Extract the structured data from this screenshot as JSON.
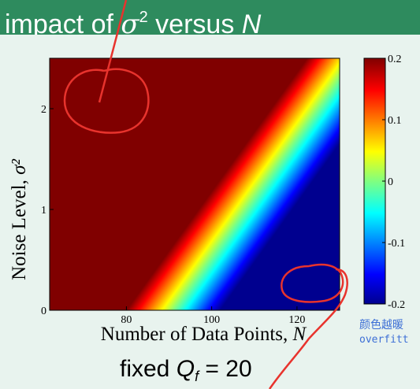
{
  "header": {
    "title_prefix": "impact of ",
    "sigma": "σ",
    "sigma_exp": "2",
    "title_mid": " versus ",
    "title_n": "N"
  },
  "chart_data": {
    "type": "heatmap",
    "xlabel": "Number of Data Points, N",
    "ylabel": "Noise Level, σ²",
    "xlim": [
      62,
      130
    ],
    "ylim": [
      0,
      2.5
    ],
    "x_ticks": [
      "80",
      "100",
      "120"
    ],
    "x_tick_values": [
      80,
      100,
      120
    ],
    "y_ticks": [
      "0",
      "1",
      "2"
    ],
    "y_tick_values": [
      0,
      1,
      2
    ],
    "colorbar": {
      "range": [
        -0.2,
        0.2
      ],
      "ticks": [
        "0.2",
        "0.1",
        "0",
        "-0.1",
        "-0.2"
      ],
      "tick_values": [
        0.2,
        0.1,
        0,
        -0.1,
        -0.2
      ],
      "colormap": "jet"
    },
    "boundary_zero_contour": [
      [
        91,
        0
      ],
      [
        130,
        2.3
      ]
    ],
    "gradient_width_N": 22,
    "grid": false
  },
  "footer": {
    "prefix": "fixed ",
    "q": "Q",
    "q_sub": "f",
    "equals": " = 20"
  },
  "annotations": {
    "cn_text": "颜色越暖",
    "en_text": "overfitt"
  },
  "colors": {
    "title_bar": "#2e8b5e",
    "background": "#e8f3ee",
    "ink_red": "#e8332d",
    "annotation_blue": "#3d6fd6"
  }
}
